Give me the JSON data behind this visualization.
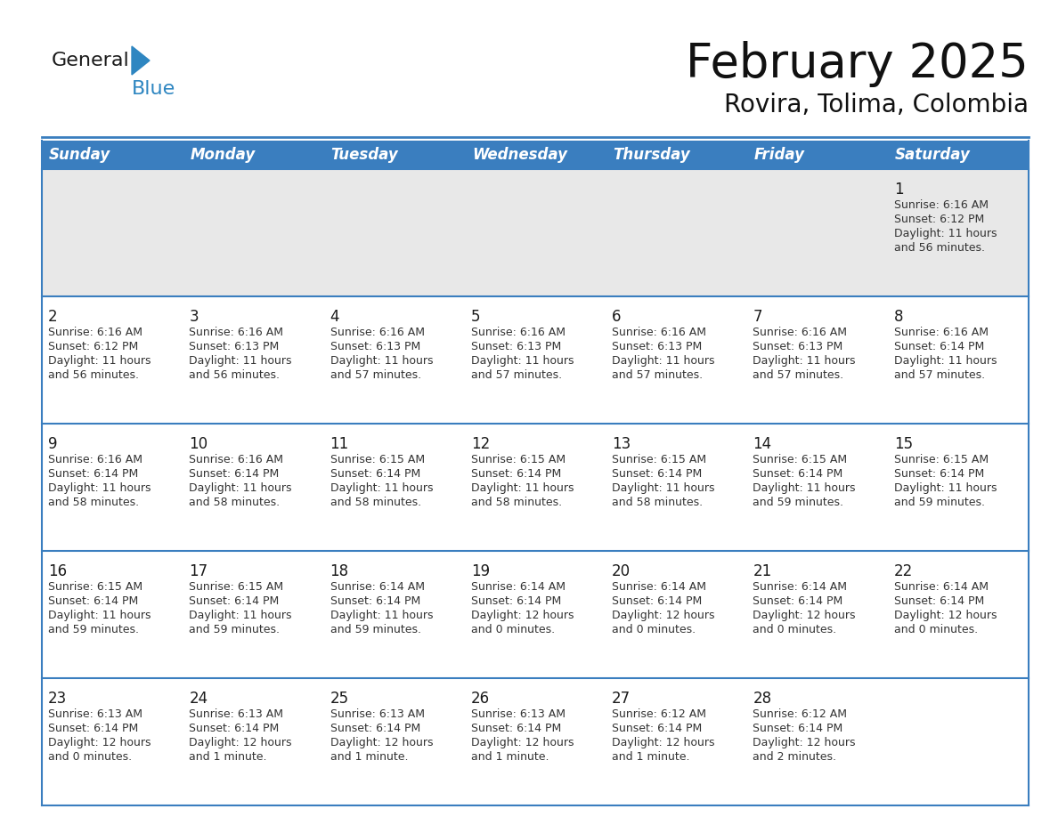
{
  "title": "February 2025",
  "subtitle": "Rovira, Tolima, Colombia",
  "header_bg": "#3A7EBF",
  "header_text_color": "#FFFFFF",
  "row0_bg": "#E8E8E8",
  "cell_bg": "#FFFFFF",
  "border_color": "#3A7EBF",
  "text_color": "#333333",
  "day_number_color": "#1A1A1A",
  "day_headers": [
    "Sunday",
    "Monday",
    "Tuesday",
    "Wednesday",
    "Thursday",
    "Friday",
    "Saturday"
  ],
  "logo_general_color": "#1A1A1A",
  "logo_blue_color": "#2E86C1",
  "title_fontsize": 38,
  "subtitle_fontsize": 20,
  "header_fontsize": 12,
  "day_num_fontsize": 12,
  "info_fontsize": 9,
  "calendar_data": [
    [
      {
        "day": null,
        "sunrise": null,
        "sunset": null,
        "daylight_line1": null,
        "daylight_line2": null
      },
      {
        "day": null,
        "sunrise": null,
        "sunset": null,
        "daylight_line1": null,
        "daylight_line2": null
      },
      {
        "day": null,
        "sunrise": null,
        "sunset": null,
        "daylight_line1": null,
        "daylight_line2": null
      },
      {
        "day": null,
        "sunrise": null,
        "sunset": null,
        "daylight_line1": null,
        "daylight_line2": null
      },
      {
        "day": null,
        "sunrise": null,
        "sunset": null,
        "daylight_line1": null,
        "daylight_line2": null
      },
      {
        "day": null,
        "sunrise": null,
        "sunset": null,
        "daylight_line1": null,
        "daylight_line2": null
      },
      {
        "day": 1,
        "sunrise": "6:16 AM",
        "sunset": "6:12 PM",
        "daylight_line1": "11 hours",
        "daylight_line2": "and 56 minutes."
      }
    ],
    [
      {
        "day": 2,
        "sunrise": "6:16 AM",
        "sunset": "6:12 PM",
        "daylight_line1": "11 hours",
        "daylight_line2": "and 56 minutes."
      },
      {
        "day": 3,
        "sunrise": "6:16 AM",
        "sunset": "6:13 PM",
        "daylight_line1": "11 hours",
        "daylight_line2": "and 56 minutes."
      },
      {
        "day": 4,
        "sunrise": "6:16 AM",
        "sunset": "6:13 PM",
        "daylight_line1": "11 hours",
        "daylight_line2": "and 57 minutes."
      },
      {
        "day": 5,
        "sunrise": "6:16 AM",
        "sunset": "6:13 PM",
        "daylight_line1": "11 hours",
        "daylight_line2": "and 57 minutes."
      },
      {
        "day": 6,
        "sunrise": "6:16 AM",
        "sunset": "6:13 PM",
        "daylight_line1": "11 hours",
        "daylight_line2": "and 57 minutes."
      },
      {
        "day": 7,
        "sunrise": "6:16 AM",
        "sunset": "6:13 PM",
        "daylight_line1": "11 hours",
        "daylight_line2": "and 57 minutes."
      },
      {
        "day": 8,
        "sunrise": "6:16 AM",
        "sunset": "6:14 PM",
        "daylight_line1": "11 hours",
        "daylight_line2": "and 57 minutes."
      }
    ],
    [
      {
        "day": 9,
        "sunrise": "6:16 AM",
        "sunset": "6:14 PM",
        "daylight_line1": "11 hours",
        "daylight_line2": "and 58 minutes."
      },
      {
        "day": 10,
        "sunrise": "6:16 AM",
        "sunset": "6:14 PM",
        "daylight_line1": "11 hours",
        "daylight_line2": "and 58 minutes."
      },
      {
        "day": 11,
        "sunrise": "6:15 AM",
        "sunset": "6:14 PM",
        "daylight_line1": "11 hours",
        "daylight_line2": "and 58 minutes."
      },
      {
        "day": 12,
        "sunrise": "6:15 AM",
        "sunset": "6:14 PM",
        "daylight_line1": "11 hours",
        "daylight_line2": "and 58 minutes."
      },
      {
        "day": 13,
        "sunrise": "6:15 AM",
        "sunset": "6:14 PM",
        "daylight_line1": "11 hours",
        "daylight_line2": "and 58 minutes."
      },
      {
        "day": 14,
        "sunrise": "6:15 AM",
        "sunset": "6:14 PM",
        "daylight_line1": "11 hours",
        "daylight_line2": "and 59 minutes."
      },
      {
        "day": 15,
        "sunrise": "6:15 AM",
        "sunset": "6:14 PM",
        "daylight_line1": "11 hours",
        "daylight_line2": "and 59 minutes."
      }
    ],
    [
      {
        "day": 16,
        "sunrise": "6:15 AM",
        "sunset": "6:14 PM",
        "daylight_line1": "11 hours",
        "daylight_line2": "and 59 minutes."
      },
      {
        "day": 17,
        "sunrise": "6:15 AM",
        "sunset": "6:14 PM",
        "daylight_line1": "11 hours",
        "daylight_line2": "and 59 minutes."
      },
      {
        "day": 18,
        "sunrise": "6:14 AM",
        "sunset": "6:14 PM",
        "daylight_line1": "11 hours",
        "daylight_line2": "and 59 minutes."
      },
      {
        "day": 19,
        "sunrise": "6:14 AM",
        "sunset": "6:14 PM",
        "daylight_line1": "12 hours",
        "daylight_line2": "and 0 minutes."
      },
      {
        "day": 20,
        "sunrise": "6:14 AM",
        "sunset": "6:14 PM",
        "daylight_line1": "12 hours",
        "daylight_line2": "and 0 minutes."
      },
      {
        "day": 21,
        "sunrise": "6:14 AM",
        "sunset": "6:14 PM",
        "daylight_line1": "12 hours",
        "daylight_line2": "and 0 minutes."
      },
      {
        "day": 22,
        "sunrise": "6:14 AM",
        "sunset": "6:14 PM",
        "daylight_line1": "12 hours",
        "daylight_line2": "and 0 minutes."
      }
    ],
    [
      {
        "day": 23,
        "sunrise": "6:13 AM",
        "sunset": "6:14 PM",
        "daylight_line1": "12 hours",
        "daylight_line2": "and 0 minutes."
      },
      {
        "day": 24,
        "sunrise": "6:13 AM",
        "sunset": "6:14 PM",
        "daylight_line1": "12 hours",
        "daylight_line2": "and 1 minute."
      },
      {
        "day": 25,
        "sunrise": "6:13 AM",
        "sunset": "6:14 PM",
        "daylight_line1": "12 hours",
        "daylight_line2": "and 1 minute."
      },
      {
        "day": 26,
        "sunrise": "6:13 AM",
        "sunset": "6:14 PM",
        "daylight_line1": "12 hours",
        "daylight_line2": "and 1 minute."
      },
      {
        "day": 27,
        "sunrise": "6:12 AM",
        "sunset": "6:14 PM",
        "daylight_line1": "12 hours",
        "daylight_line2": "and 1 minute."
      },
      {
        "day": 28,
        "sunrise": "6:12 AM",
        "sunset": "6:14 PM",
        "daylight_line1": "12 hours",
        "daylight_line2": "and 2 minutes."
      },
      {
        "day": null,
        "sunrise": null,
        "sunset": null,
        "daylight_line1": null,
        "daylight_line2": null
      }
    ]
  ]
}
